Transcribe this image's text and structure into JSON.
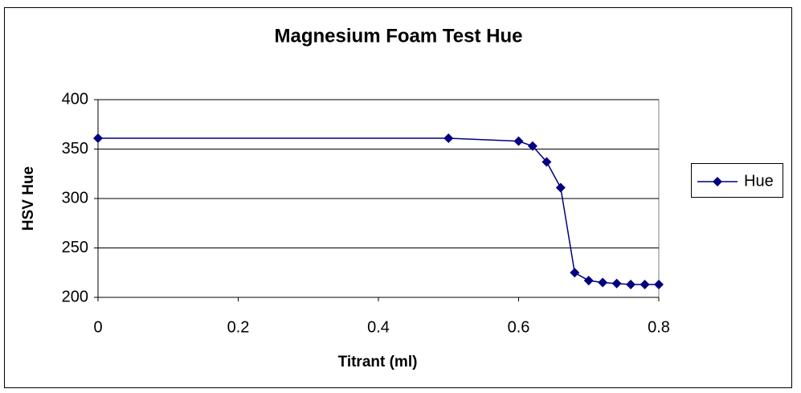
{
  "chart_data": {
    "type": "line",
    "title": "Magnesium Foam Test Hue",
    "x_label": "Titrant (ml)",
    "y_label": "HSV Hue",
    "x": [
      0,
      0.5,
      0.6,
      0.62,
      0.64,
      0.66,
      0.68,
      0.7,
      0.72,
      0.74,
      0.76,
      0.78,
      0.8
    ],
    "series": [
      {
        "name": "Hue",
        "color": "#000080",
        "values": [
          361,
          361,
          358,
          353,
          337,
          311,
          225,
          217,
          215,
          214,
          213,
          213,
          213
        ]
      }
    ],
    "xlim": [
      0,
      0.8
    ],
    "xticks": [
      0,
      0.2,
      0.4,
      0.6,
      0.8
    ],
    "ylim": [
      200,
      400
    ],
    "yticks": [
      200,
      250,
      300,
      350,
      400
    ],
    "grid": true,
    "legend": "right"
  }
}
